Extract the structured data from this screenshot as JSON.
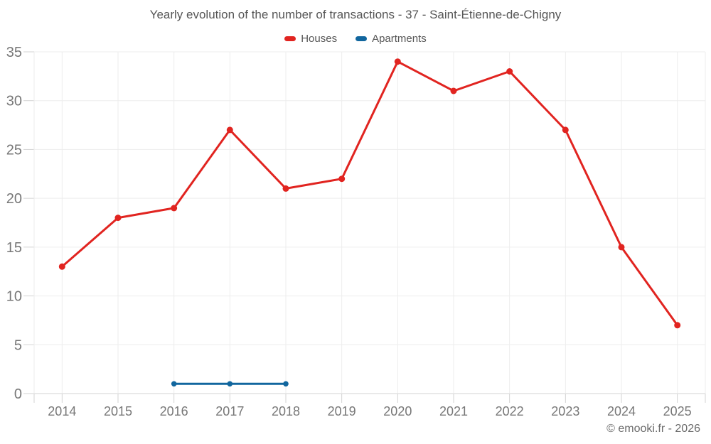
{
  "chart": {
    "title": "Yearly evolution of the number of transactions - 37 - Saint-Étienne-de-Chigny",
    "copyright": "© emooki.fr - 2026"
  },
  "chart_data": {
    "type": "line",
    "categories": [
      "2014",
      "2015",
      "2016",
      "2017",
      "2018",
      "2019",
      "2020",
      "2021",
      "2022",
      "2023",
      "2024",
      "2025"
    ],
    "series": [
      {
        "name": "Houses",
        "color": "#e12420",
        "marker_radius": 4.5,
        "values": [
          13,
          18,
          19,
          27,
          21,
          22,
          34,
          31,
          33,
          27,
          15,
          7
        ]
      },
      {
        "name": "Apartments",
        "color": "#11669e",
        "marker_radius": 3.8,
        "values": [
          null,
          null,
          1,
          1,
          1,
          null,
          null,
          null,
          null,
          null,
          null,
          null
        ]
      }
    ],
    "ylim": [
      0,
      35
    ],
    "ytick_step": 5,
    "grid": true,
    "legend_position": "top",
    "axis_text_color": "#777777",
    "grid_color": "#ededed",
    "axis_color": "#d3d3d3"
  }
}
